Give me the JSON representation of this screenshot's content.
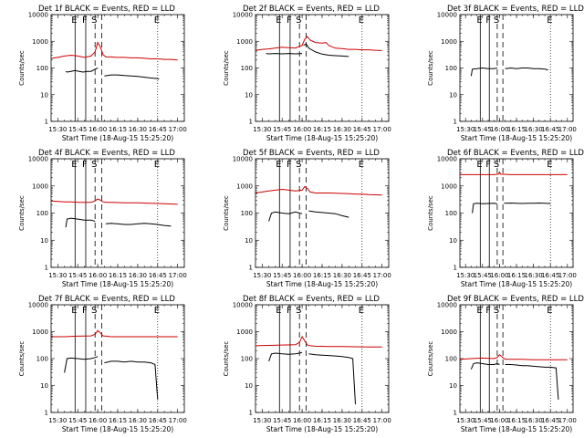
{
  "figure": {
    "background": "#ffffff"
  },
  "colors": {
    "events": "#000000",
    "lld": "#cc0000"
  },
  "common": {
    "xlabel": "Start Time (18-Aug-15 15:25:20)",
    "ylabel": "Counts/sec",
    "x_tick_labels": [
      "15:30",
      "15:45",
      "16:00",
      "16:15",
      "16:30",
      "16:45",
      "17:00"
    ],
    "y_tick_labels": [
      "1",
      "10",
      "100",
      "1000",
      "10000"
    ],
    "event_markers": [
      "E",
      "F",
      "S",
      "E"
    ]
  },
  "chart_data": [
    {
      "type": "line",
      "title": "Det 1f BLACK = Events, RED = LLD",
      "xlim": [
        "15:25",
        "17:05"
      ],
      "ylim": [
        1,
        10000
      ],
      "yscale": "log",
      "grid": false,
      "segments": [
        {
          "x": [
            "15:36",
            "15:37",
            "15:40",
            "15:43",
            "15:46",
            "15:49",
            "15:52",
            "15:55",
            "15:58",
            "16:00"
          ],
          "y": [
            75,
            70,
            75,
            80,
            75,
            70,
            75,
            75,
            90,
            100
          ]
        },
        {
          "x": [
            "16:05",
            "16:10",
            "16:15",
            "16:20",
            "16:25",
            "16:30",
            "16:35",
            "16:40",
            "16:45",
            "16:46"
          ],
          "y": [
            50,
            55,
            55,
            52,
            50,
            48,
            45,
            42,
            40,
            38
          ]
        }
      ],
      "series": [
        {
          "x": [
            "15:25",
            "15:30",
            "15:35",
            "15:40",
            "15:45",
            "15:50",
            "15:55",
            "15:58",
            "16:00",
            "16:02",
            "16:04",
            "16:06",
            "16:10",
            "16:15",
            "16:20",
            "16:25",
            "16:30",
            "16:35",
            "16:40",
            "16:45",
            "16:50",
            "16:55",
            "17:00"
          ],
          "y": [
            230,
            250,
            280,
            300,
            280,
            250,
            280,
            400,
            900,
            600,
            320,
            260,
            260,
            250,
            250,
            240,
            240,
            230,
            220,
            220,
            210,
            210,
            200
          ]
        }
      ]
    },
    {
      "type": "line",
      "title": "Det 2f BLACK = Events, RED = LLD",
      "xlim": [
        "15:25",
        "17:05"
      ],
      "ylim": [
        1,
        10000
      ],
      "yscale": "log",
      "grid": false,
      "segments": [
        {
          "x": [
            "15:33",
            "15:35",
            "15:40",
            "15:45",
            "15:50",
            "15:55",
            "16:00"
          ],
          "y": [
            350,
            340,
            350,
            340,
            350,
            340,
            350
          ]
        },
        {
          "x": [
            "16:01",
            "16:03",
            "16:05",
            "16:10",
            "16:15",
            "16:20",
            "16:25",
            "16:30",
            "16:35"
          ],
          "y": [
            700,
            800,
            550,
            400,
            330,
            300,
            290,
            280,
            270
          ]
        }
      ],
      "series": [
        {
          "x": [
            "15:25",
            "15:30",
            "15:35",
            "15:40",
            "15:45",
            "15:50",
            "15:55",
            "16:00",
            "16:02",
            "16:04",
            "16:06",
            "16:10",
            "16:15",
            "16:18",
            "16:20",
            "16:25",
            "16:30",
            "16:35",
            "16:40",
            "16:45",
            "16:50",
            "16:55",
            "17:00"
          ],
          "y": [
            450,
            500,
            520,
            560,
            600,
            580,
            560,
            700,
            1200,
            1500,
            1100,
            900,
            850,
            900,
            700,
            550,
            530,
            500,
            500,
            480,
            480,
            460,
            450
          ]
        }
      ]
    },
    {
      "type": "line",
      "title": "Det 3f BLACK = Events, RED = LLD",
      "xlim": [
        "15:25",
        "17:05"
      ],
      "ylim": [
        1,
        10000
      ],
      "yscale": "log",
      "grid": false,
      "segments": [
        {
          "x": [
            "15:35",
            "15:36",
            "15:40",
            "15:45",
            "15:50",
            "15:55",
            "15:58"
          ],
          "y": [
            50,
            90,
            95,
            100,
            95,
            95,
            100
          ]
        },
        {
          "x": [
            "16:05",
            "16:10",
            "16:15",
            "16:20",
            "16:25",
            "16:30",
            "16:35",
            "16:40",
            "16:43"
          ],
          "y": [
            95,
            100,
            95,
            100,
            100,
            95,
            95,
            90,
            85
          ]
        }
      ],
      "series": []
    },
    {
      "type": "line",
      "title": "Det 4f BLACK = Events, RED = LLD",
      "xlim": [
        "15:25",
        "17:05"
      ],
      "ylim": [
        1,
        10000
      ],
      "yscale": "log",
      "grid": false,
      "segments": [
        {
          "x": [
            "15:36",
            "15:37",
            "15:40",
            "15:45",
            "15:50",
            "15:55",
            "15:58"
          ],
          "y": [
            30,
            60,
            65,
            60,
            55,
            55,
            50
          ]
        },
        {
          "x": [
            "16:06",
            "16:10",
            "16:15",
            "16:20",
            "16:25",
            "16:30",
            "16:35",
            "16:40",
            "16:45",
            "16:50",
            "16:55"
          ],
          "y": [
            40,
            42,
            40,
            38,
            38,
            40,
            42,
            40,
            38,
            35,
            33
          ]
        }
      ],
      "series": [
        {
          "x": [
            "15:25",
            "15:30",
            "15:35",
            "15:40",
            "15:45",
            "15:50",
            "15:55",
            "15:58",
            "16:00",
            "16:02",
            "16:04",
            "16:06",
            "16:10",
            "16:20",
            "16:30",
            "16:40",
            "16:50",
            "17:00"
          ],
          "y": [
            280,
            270,
            260,
            260,
            250,
            250,
            250,
            280,
            330,
            300,
            260,
            250,
            250,
            240,
            240,
            230,
            220,
            210
          ]
        }
      ]
    },
    {
      "type": "line",
      "title": "Det 5f BLACK = Events, RED = LLD",
      "xlim": [
        "15:25",
        "17:05"
      ],
      "ylim": [
        1,
        10000
      ],
      "yscale": "log",
      "grid": false,
      "segments": [
        {
          "x": [
            "15:35",
            "15:37",
            "15:40",
            "15:45",
            "15:50",
            "15:55",
            "15:58",
            "16:00"
          ],
          "y": [
            50,
            100,
            110,
            100,
            95,
            110,
            100,
            95
          ]
        },
        {
          "x": [
            "16:05",
            "16:10",
            "16:15",
            "16:20",
            "16:25",
            "16:30",
            "16:35"
          ],
          "y": [
            120,
            110,
            105,
            100,
            95,
            80,
            70
          ]
        }
      ],
      "series": [
        {
          "x": [
            "15:25",
            "15:30",
            "15:35",
            "15:40",
            "15:45",
            "15:50",
            "15:55",
            "16:00",
            "16:02",
            "16:04",
            "16:06",
            "16:10",
            "16:15",
            "16:20",
            "16:25",
            "16:30",
            "16:35",
            "16:40",
            "16:45",
            "16:50",
            "16:55",
            "17:00"
          ],
          "y": [
            550,
            600,
            650,
            700,
            750,
            700,
            650,
            700,
            950,
            800,
            600,
            550,
            550,
            550,
            540,
            530,
            520,
            500,
            500,
            480,
            470,
            460
          ]
        }
      ]
    },
    {
      "type": "line",
      "title": "Det 6f BLACK = Events, RED = LLD",
      "xlim": [
        "15:25",
        "17:05"
      ],
      "ylim": [
        1,
        10000
      ],
      "yscale": "log",
      "grid": false,
      "segments": [
        {
          "x": [
            "15:36",
            "15:37",
            "15:40",
            "15:45",
            "15:50",
            "15:55",
            "15:58"
          ],
          "y": [
            100,
            220,
            230,
            220,
            225,
            230,
            220
          ]
        },
        {
          "x": [
            "16:04",
            "16:10",
            "16:15",
            "16:20",
            "16:25",
            "16:30",
            "16:35",
            "16:40",
            "16:45"
          ],
          "y": [
            230,
            235,
            230,
            225,
            230,
            230,
            235,
            230,
            225
          ]
        }
      ],
      "series": [
        {
          "x": [
            "15:25",
            "15:40",
            "15:55",
            "15:59",
            "16:00",
            "16:01",
            "16:10",
            "16:25",
            "16:40",
            "16:55",
            "17:00"
          ],
          "y": [
            2600,
            2600,
            2600,
            2700,
            3200,
            2700,
            2600,
            2600,
            2600,
            2600,
            2600
          ]
        }
      ]
    },
    {
      "type": "line",
      "title": "Det 7f BLACK = Events, RED = LLD",
      "xlim": [
        "15:25",
        "17:05"
      ],
      "ylim": [
        1,
        10000
      ],
      "yscale": "log",
      "grid": false,
      "segments": [
        {
          "x": [
            "15:35",
            "15:37",
            "15:40",
            "15:45",
            "15:50",
            "15:55",
            "15:58",
            "16:00"
          ],
          "y": [
            30,
            100,
            105,
            100,
            95,
            100,
            110,
            120
          ]
        },
        {
          "x": [
            "16:05",
            "16:10",
            "16:15",
            "16:20",
            "16:25",
            "16:30",
            "16:35",
            "16:40",
            "16:43",
            "16:45"
          ],
          "y": [
            70,
            80,
            80,
            75,
            80,
            75,
            75,
            70,
            60,
            3
          ]
        }
      ],
      "series": [
        {
          "x": [
            "15:25",
            "15:35",
            "15:45",
            "15:55",
            "15:58",
            "16:00",
            "16:02",
            "16:04",
            "16:06",
            "16:10",
            "16:20",
            "16:30",
            "16:40",
            "16:50",
            "17:00"
          ],
          "y": [
            650,
            650,
            680,
            700,
            800,
            1100,
            900,
            700,
            680,
            650,
            650,
            650,
            650,
            650,
            650
          ]
        }
      ]
    },
    {
      "type": "line",
      "title": "Det 8f BLACK = Events, RED = LLD",
      "xlim": [
        "15:25",
        "17:05"
      ],
      "ylim": [
        1,
        10000
      ],
      "yscale": "log",
      "grid": false,
      "segments": [
        {
          "x": [
            "15:35",
            "15:37",
            "15:40",
            "15:45",
            "15:50",
            "15:55",
            "15:58",
            "16:00"
          ],
          "y": [
            80,
            150,
            160,
            150,
            145,
            150,
            160,
            170
          ]
        },
        {
          "x": [
            "16:05",
            "16:10",
            "16:15",
            "16:20",
            "16:25",
            "16:30",
            "16:35",
            "16:38",
            "16:40"
          ],
          "y": [
            150,
            140,
            135,
            130,
            125,
            120,
            110,
            100,
            2
          ]
        }
      ],
      "series": [
        {
          "x": [
            "15:25",
            "15:35",
            "15:45",
            "15:55",
            "15:58",
            "16:00",
            "16:02",
            "16:04",
            "16:06",
            "16:10",
            "16:20",
            "16:30",
            "16:40",
            "16:50",
            "17:00"
          ],
          "y": [
            300,
            310,
            320,
            330,
            400,
            650,
            450,
            320,
            300,
            290,
            280,
            280,
            275,
            270,
            270
          ]
        }
      ]
    },
    {
      "type": "line",
      "title": "Det 9f BLACK = Events, RED = LLD",
      "xlim": [
        "15:25",
        "17:05"
      ],
      "ylim": [
        1,
        10000
      ],
      "yscale": "log",
      "grid": false,
      "segments": [
        {
          "x": [
            "15:35",
            "15:37",
            "15:40",
            "15:45",
            "15:50",
            "15:55",
            "15:58",
            "16:00"
          ],
          "y": [
            40,
            65,
            70,
            65,
            60,
            60,
            65,
            60
          ]
        },
        {
          "x": [
            "16:05",
            "16:10",
            "16:15",
            "16:20",
            "16:25",
            "16:30",
            "16:35",
            "16:40",
            "16:45",
            "16:50",
            "16:52"
          ],
          "y": [
            60,
            60,
            58,
            55,
            55,
            52,
            50,
            48,
            48,
            45,
            3
          ]
        }
      ],
      "series": [
        {
          "x": [
            "15:25",
            "15:35",
            "15:45",
            "15:55",
            "15:58",
            "16:00",
            "16:02",
            "16:04",
            "16:06",
            "16:10",
            "16:20",
            "16:30",
            "16:40",
            "16:50",
            "17:00"
          ],
          "y": [
            95,
            100,
            105,
            100,
            110,
            140,
            120,
            100,
            95,
            95,
            95,
            90,
            90,
            90,
            90
          ]
        }
      ]
    }
  ]
}
